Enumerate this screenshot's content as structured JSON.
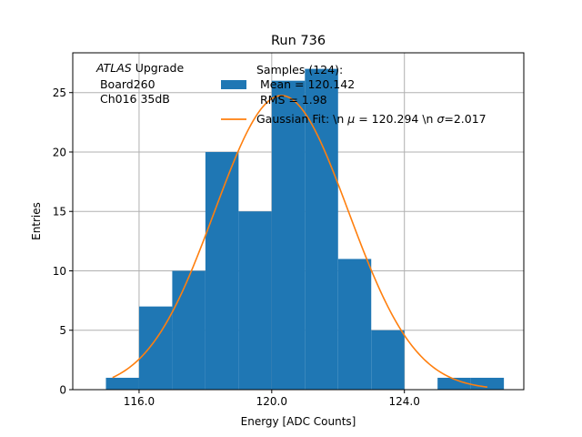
{
  "chart_data": {
    "type": "bar",
    "title": "Run 736",
    "xlabel": "Energy [ADC Counts]",
    "ylabel": "Entries",
    "xlim": [
      114.0,
      127.6
    ],
    "ylim": [
      0,
      28.35
    ],
    "grid": true,
    "xticks": [
      116.0,
      120.0,
      124.0
    ],
    "xtick_labels": [
      "116.0",
      "120.0",
      "124.0"
    ],
    "yticks": [
      0,
      5,
      10,
      15,
      20,
      25
    ],
    "ytick_labels": [
      "0",
      "5",
      "10",
      "15",
      "20",
      "25"
    ],
    "bins": [
      {
        "x0": 115.0,
        "x1": 116.0,
        "count": 1
      },
      {
        "x0": 116.0,
        "x1": 117.0,
        "count": 7
      },
      {
        "x0": 117.0,
        "x1": 118.0,
        "count": 10
      },
      {
        "x0": 118.0,
        "x1": 119.0,
        "count": 20
      },
      {
        "x0": 119.0,
        "x1": 120.0,
        "count": 15
      },
      {
        "x0": 120.0,
        "x1": 121.0,
        "count": 26
      },
      {
        "x0": 121.0,
        "x1": 122.0,
        "count": 27
      },
      {
        "x0": 122.0,
        "x1": 123.0,
        "count": 11
      },
      {
        "x0": 123.0,
        "x1": 124.0,
        "count": 5
      },
      {
        "x0": 124.0,
        "x1": 125.0,
        "count": 0
      },
      {
        "x0": 125.0,
        "x1": 126.0,
        "count": 1
      },
      {
        "x0": 126.0,
        "x1": 127.0,
        "count": 1
      }
    ],
    "fit": {
      "mu": 120.294,
      "sigma": 2.017,
      "amplitude": 24.75,
      "x_range": [
        115.2,
        126.5
      ]
    },
    "colors": {
      "bars": "#1f77b4",
      "fit": "#ff7f0e",
      "grid": "#b0b0b0"
    },
    "annotation": {
      "prefix": "ATLAS",
      "suffix": " Upgrade",
      "line2": " Board260",
      "line3": " Ch016 35dB"
    },
    "legend": {
      "placement": "top-right",
      "entry1_line1": "Samples (124):",
      "entry1_line2": " Mean = 120.142",
      "entry1_line3": " RMS = 1.98",
      "entry2_prefix": "Gaussian Fit: \\n ",
      "entry2_mu_sym": "μ",
      "entry2_mid": " = 120.294 \\n ",
      "entry2_sigma_sym": "σ",
      "entry2_end": "=2.017"
    }
  }
}
